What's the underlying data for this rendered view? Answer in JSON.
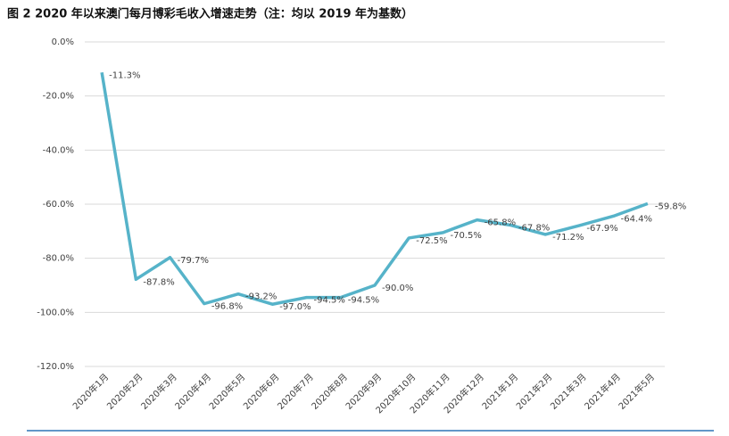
{
  "chart_data": {
    "type": "line",
    "title": "图 2  2020 年以来澳门每月博彩毛收入增速走势（注：均以 2019 年为基数）",
    "categories": [
      "2020年1月",
      "2020年2月",
      "2020年3月",
      "2020年4月",
      "2020年5月",
      "2020年6月",
      "2020年7月",
      "2020年8月",
      "2020年9月",
      "2020年10月",
      "2020年11月",
      "2020年12月",
      "2021年1月",
      "2021年2月",
      "2021年3月",
      "2021年4月",
      "2021年5月"
    ],
    "values": [
      -11.3,
      -87.8,
      -79.7,
      -96.8,
      -93.2,
      -97.0,
      -94.5,
      -94.5,
      -90.0,
      -72.5,
      -70.5,
      -65.8,
      -67.8,
      -71.2,
      -67.9,
      -64.4,
      -59.8
    ],
    "value_labels": [
      "-11.3%",
      "-87.8%",
      "-79.7%",
      "-96.8%",
      "-93.2%",
      "-97.0%",
      "-94.5%",
      "-94.5%",
      "-90.0%",
      "-72.5%",
      "-70.5%",
      "-65.8%",
      "-67.8%",
      "-71.2%",
      "-67.9%",
      "-64.4%",
      "-59.8%"
    ],
    "color": "#56b3c9",
    "ylim": [
      -120,
      0
    ],
    "yticks": [
      {
        "value": 0,
        "label": "0.0%"
      },
      {
        "value": -20,
        "label": "-20.0%"
      },
      {
        "value": -40,
        "label": "-40.0%"
      },
      {
        "value": -60,
        "label": "-60.0%"
      },
      {
        "value": -80,
        "label": "-80.0%"
      },
      {
        "value": -100,
        "label": "-100.0%"
      },
      {
        "value": -120,
        "label": "-120.0%"
      }
    ],
    "grid": true
  }
}
